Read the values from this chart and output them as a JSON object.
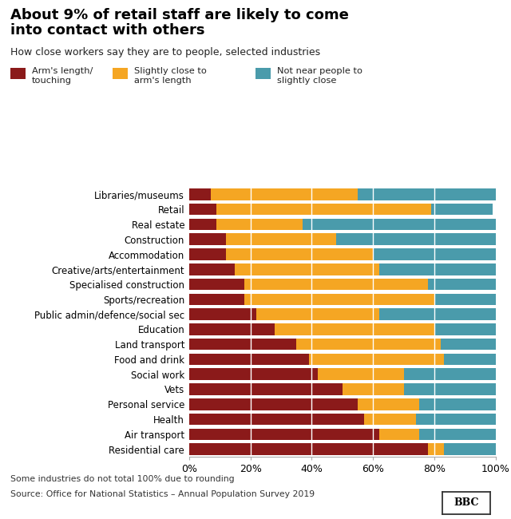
{
  "title_line1": "About 9% of retail staff are likely to come",
  "title_line2": "into contact with others",
  "subtitle": "How close workers say they are to people, selected industries",
  "categories": [
    "Libraries/museums",
    "Retail",
    "Real estate",
    "Construction",
    "Accommodation",
    "Creative/arts/entertainment",
    "Specialised construction",
    "Sports/recreation",
    "Public admin/defence/social sec",
    "Education",
    "Land transport",
    "Food and drink",
    "Social work",
    "Vets",
    "Personal service",
    "Health",
    "Air transport",
    "Residential care"
  ],
  "arm_length_touching": [
    7,
    9,
    9,
    12,
    12,
    15,
    18,
    18,
    22,
    28,
    35,
    39,
    42,
    50,
    55,
    57,
    62,
    78
  ],
  "slightly_close": [
    48,
    70,
    28,
    36,
    48,
    47,
    60,
    62,
    40,
    52,
    47,
    44,
    28,
    20,
    20,
    17,
    13,
    5
  ],
  "not_near": [
    45,
    20,
    63,
    52,
    40,
    38,
    22,
    20,
    38,
    20,
    18,
    17,
    30,
    30,
    25,
    26,
    25,
    17
  ],
  "color_arm": "#8B1A1A",
  "color_slightly": "#F5A623",
  "color_not_near": "#4A9BAB",
  "legend_label_arm": "Arm's length/\ntouching",
  "legend_label_slightly": "Slightly close to\narm's length",
  "legend_label_not_near": "Not near people to\nslightly close",
  "footnote": "Some industries do not total 100% due to rounding",
  "source": "Source: Office for National Statistics – Annual Population Survey 2019",
  "bbc_text": "BBC"
}
